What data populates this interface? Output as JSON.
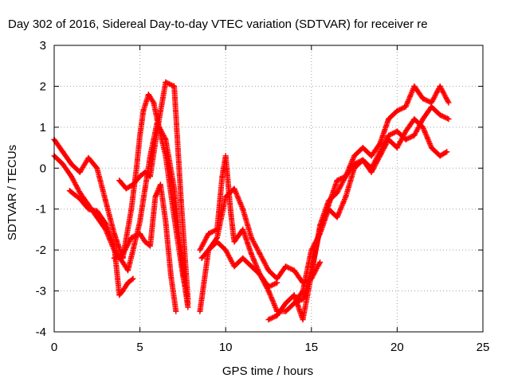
{
  "chart_data": {
    "type": "scatter",
    "title": "Day 302 of 2016, Sidereal Day-to-day VTEC variation (SDTVAR) for receiver re",
    "xlabel": "GPS time / hours",
    "ylabel": "SDTVAR / TECUs",
    "xlim": [
      0,
      25
    ],
    "ylim": [
      -4,
      3
    ],
    "x_ticks": [
      0,
      5,
      10,
      15,
      20,
      25
    ],
    "y_ticks": [
      -4,
      -3,
      -2,
      -1,
      0,
      1,
      2,
      3
    ],
    "grid": true,
    "marker": "+",
    "color": "#ff0000",
    "series": [
      {
        "x": [
          0.0,
          0.5,
          1.0,
          1.5,
          2.0,
          2.5,
          3.0,
          3.5,
          4.0,
          4.5,
          4.8,
          5.0,
          5.2,
          5.5,
          5.8,
          6.0,
          6.5,
          7.0,
          7.5,
          7.8
        ],
        "values": [
          0.7,
          0.4,
          0.1,
          -0.1,
          0.25,
          0.0,
          -0.8,
          -1.6,
          -2.2,
          -1.0,
          0.0,
          0.8,
          1.4,
          1.8,
          1.6,
          1.2,
          0.3,
          -1.2,
          -2.6,
          -3.3
        ]
      },
      {
        "x": [
          0.0,
          0.5,
          1.0,
          1.5,
          2.0,
          2.5,
          3.0,
          3.5,
          4.0,
          4.3,
          4.6,
          5.0,
          5.3,
          5.6,
          6.0,
          6.5,
          7.0,
          7.3,
          7.6,
          7.8
        ],
        "values": [
          0.3,
          0.1,
          -0.2,
          -0.6,
          -0.9,
          -1.2,
          -1.5,
          -2.0,
          -2.3,
          -2.5,
          -2.0,
          -1.3,
          -0.5,
          0.3,
          1.1,
          0.7,
          -0.5,
          -1.7,
          -2.8,
          -3.4
        ]
      },
      {
        "x": [
          0.9,
          1.5,
          2.0,
          2.5,
          3.0,
          3.5,
          3.8,
          4.0,
          4.3,
          4.6
        ],
        "values": [
          -0.55,
          -0.75,
          -1.0,
          -1.05,
          -1.35,
          -1.9,
          -3.1,
          -3.0,
          -2.8,
          -2.7
        ]
      },
      {
        "x": [
          3.8,
          4.2,
          4.6,
          5.0,
          5.3,
          5.6,
          6.0,
          6.5,
          7.0,
          7.4,
          7.8
        ],
        "values": [
          -0.3,
          -0.5,
          -0.4,
          -0.2,
          -0.1,
          -0.2,
          0.9,
          2.1,
          2.0,
          -0.8,
          -3.2
        ]
      },
      {
        "x": [
          3.5,
          4.0,
          4.5,
          5.0,
          5.3,
          5.6,
          5.9,
          6.2,
          6.5,
          6.8,
          7.1
        ],
        "values": [
          -2.2,
          -2.1,
          -1.7,
          -1.6,
          -1.8,
          -1.9,
          -0.7,
          -0.4,
          -1.3,
          -2.6,
          -3.5
        ]
      },
      {
        "x": [
          8.5,
          9.0,
          9.5,
          10.0,
          10.5,
          11.0,
          11.5,
          12.0,
          12.5,
          13.0,
          13.5,
          14.0,
          14.5,
          15.0,
          15.5
        ],
        "values": [
          -3.5,
          -2.0,
          -1.7,
          -0.7,
          -0.5,
          -1.0,
          -1.7,
          -2.1,
          -2.5,
          -2.7,
          -2.4,
          -2.5,
          -2.8,
          -2.7,
          -2.3
        ]
      },
      {
        "x": [
          8.5,
          9.0,
          9.5,
          9.8,
          10.0,
          10.3,
          10.5,
          11.0,
          11.5,
          12.0,
          12.5,
          13.0
        ],
        "values": [
          -2.0,
          -1.6,
          -1.5,
          -0.2,
          0.3,
          -1.1,
          -1.8,
          -1.5,
          -2.1,
          -2.6,
          -2.9,
          -2.8
        ]
      },
      {
        "x": [
          8.6,
          9.0,
          9.5,
          10.0,
          10.5,
          11.0,
          11.5,
          12.0,
          12.5,
          13.0,
          13.5,
          14.0,
          14.5,
          15.0,
          15.5,
          16.0,
          16.5,
          17.0,
          17.5,
          18.0,
          18.5,
          19.0,
          19.5,
          20.0,
          20.5,
          21.0,
          21.5,
          22.0,
          22.5,
          23.0
        ],
        "values": [
          -2.2,
          -2.0,
          -1.8,
          -2.0,
          -2.4,
          -2.2,
          -2.4,
          -2.6,
          -3.0,
          -3.5,
          -3.5,
          -3.3,
          -3.2,
          -2.5,
          -1.5,
          -0.9,
          -0.3,
          -0.2,
          0.1,
          0.2,
          0.0,
          0.4,
          0.8,
          0.9,
          0.7,
          0.8,
          1.2,
          1.5,
          1.3,
          1.2
        ]
      },
      {
        "x": [
          12.5,
          13.0,
          13.5,
          14.0,
          14.5,
          15.0,
          15.5,
          16.0,
          16.5,
          17.0,
          17.5,
          18.0,
          18.5,
          19.0,
          19.5,
          20.0,
          20.5,
          21.0,
          21.5,
          22.0,
          22.5,
          23.0
        ],
        "values": [
          -3.7,
          -3.6,
          -3.3,
          -3.1,
          -3.7,
          -2.6,
          -1.4,
          -0.8,
          -0.6,
          -0.2,
          0.3,
          0.5,
          0.3,
          0.6,
          1.2,
          1.4,
          1.5,
          2.0,
          1.7,
          1.6,
          2.0,
          1.6
        ]
      },
      {
        "x": [
          14.0,
          14.5,
          15.0,
          15.5,
          16.0,
          16.5,
          17.0,
          17.5,
          18.0,
          18.5,
          19.0,
          19.5,
          20.0,
          20.5,
          21.0,
          21.5,
          22.0,
          22.5,
          22.9
        ],
        "values": [
          -3.3,
          -3.0,
          -2.0,
          -1.6,
          -1.0,
          -1.2,
          -0.7,
          0.0,
          0.2,
          -0.1,
          0.3,
          0.7,
          0.5,
          0.9,
          1.2,
          1.0,
          0.5,
          0.3,
          0.4
        ]
      }
    ]
  }
}
